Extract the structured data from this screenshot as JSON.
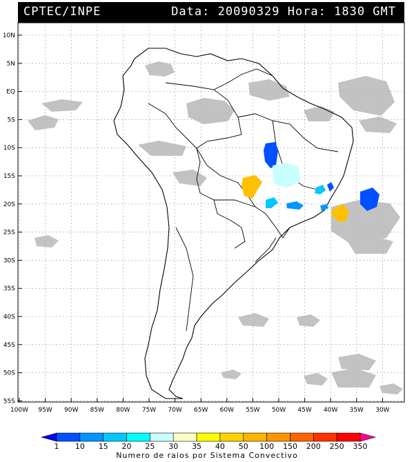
{
  "header": {
    "left": "CPTEC/INPE",
    "right": "Data: 20090329 Hora: 1830 GMT"
  },
  "axes": {
    "lat_labels": [
      "10N",
      "5N",
      "EQ",
      "5S",
      "10S",
      "15S",
      "20S",
      "25S",
      "30S",
      "35S",
      "40S",
      "45S",
      "50S",
      "55S"
    ],
    "lon_labels": [
      "100W",
      "95W",
      "90W",
      "85W",
      "80W",
      "75W",
      "70W",
      "65W",
      "60W",
      "55W",
      "50W",
      "45W",
      "40W",
      "35W",
      "30W"
    ]
  },
  "colorbar": {
    "labels": [
      "1",
      "10",
      "15",
      "20",
      "25",
      "30",
      "35",
      "40",
      "50",
      "100",
      "150",
      "200",
      "250",
      "350"
    ],
    "colors": [
      "#0000ff",
      "#0050ff",
      "#0096ff",
      "#00c8ff",
      "#00ffff",
      "#c8ffff",
      "#ffffc8",
      "#ffff00",
      "#ffd200",
      "#ffb400",
      "#ff9600",
      "#ff6400",
      "#ff3200",
      "#ff0000",
      "#ff0096"
    ],
    "title": "Numero de raios por Sistema Convectivo"
  }
}
